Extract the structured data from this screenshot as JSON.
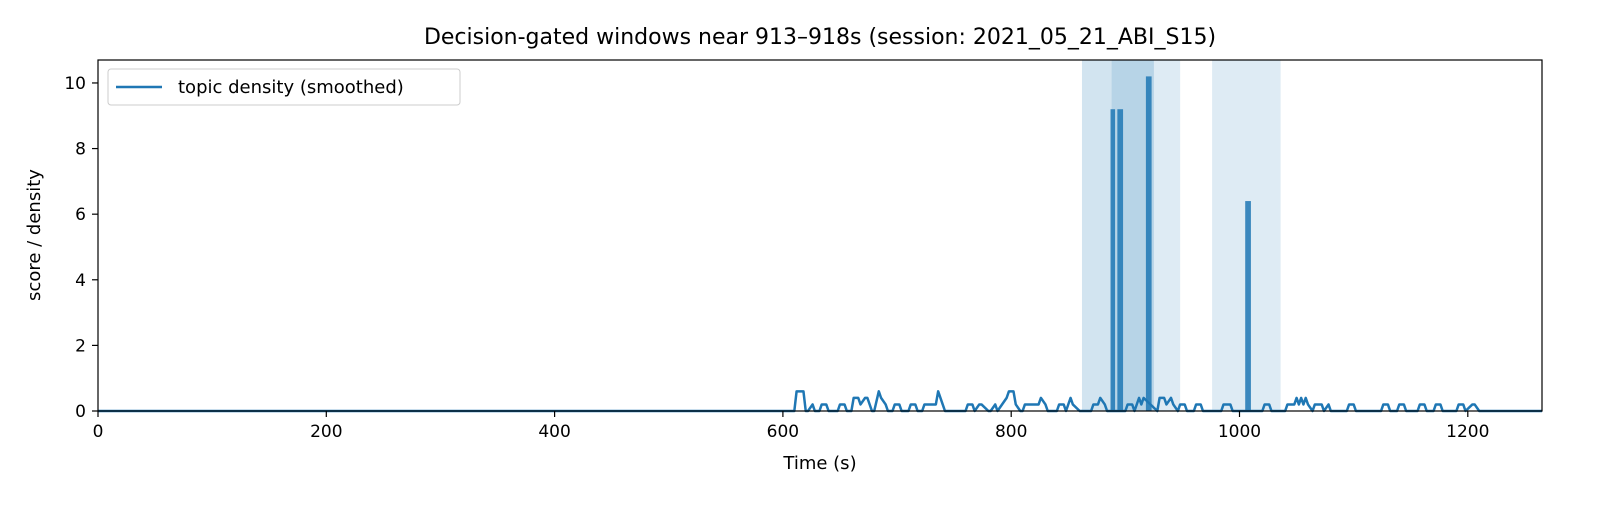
{
  "chart_data": {
    "type": "line",
    "title": "Decision-gated windows near 913–918s (session: 2021_05_21_ABI_S15)",
    "xlabel": "Time (s)",
    "ylabel": "score / density",
    "xlim": [
      0,
      1265
    ],
    "ylim": [
      0,
      10.7
    ],
    "x_ticks": [
      0,
      200,
      400,
      600,
      800,
      1000,
      1200
    ],
    "y_ticks": [
      0,
      2,
      4,
      6,
      8,
      10
    ],
    "grid": false,
    "legend": {
      "placement": "upper-left",
      "entries": [
        "topic density (smoothed)"
      ]
    },
    "colors": {
      "line": "#1f77b4",
      "bars": "#1f77b4",
      "windows": "#1f77b4"
    },
    "shaded_windows": [
      {
        "start": 862,
        "end": 925,
        "opacity": 0.2
      },
      {
        "start": 888,
        "end": 948,
        "opacity": 0.15
      },
      {
        "start": 976,
        "end": 1036,
        "opacity": 0.15
      }
    ],
    "decision_bars": [
      {
        "x": 887,
        "width": 4,
        "value": 9.2
      },
      {
        "x": 893,
        "width": 5,
        "value": 9.2
      },
      {
        "x": 918,
        "width": 5,
        "value": 10.2
      },
      {
        "x": 1005,
        "width": 5,
        "value": 6.4
      }
    ],
    "series": [
      {
        "name": "topic density (smoothed)",
        "x": [
          0,
          610,
          612,
          614,
          618,
          620,
          622,
          626,
          628,
          632,
          634,
          638,
          640,
          648,
          650,
          654,
          656,
          660,
          662,
          666,
          668,
          672,
          674,
          678,
          680,
          684,
          686,
          690,
          692,
          696,
          698,
          702,
          704,
          710,
          712,
          716,
          718,
          722,
          724,
          734,
          736,
          740,
          742,
          746,
          748,
          760,
          762,
          766,
          768,
          772,
          774,
          780,
          782,
          786,
          788,
          796,
          798,
          802,
          804,
          808,
          810,
          812,
          824,
          826,
          830,
          832,
          840,
          842,
          846,
          848,
          852,
          854,
          860,
          870,
          872,
          876,
          878,
          882,
          884,
          900,
          902,
          906,
          908,
          912,
          914,
          916,
          928,
          930,
          934,
          936,
          940,
          942,
          946,
          948,
          952,
          954,
          960,
          962,
          966,
          968,
          984,
          986,
          992,
          994,
          1000,
          1020,
          1022,
          1026,
          1028,
          1040,
          1042,
          1048,
          1050,
          1052,
          1054,
          1056,
          1058,
          1060,
          1064,
          1066,
          1072,
          1074,
          1078,
          1080,
          1094,
          1096,
          1100,
          1102,
          1110,
          1124,
          1126,
          1130,
          1132,
          1138,
          1140,
          1144,
          1146,
          1156,
          1158,
          1162,
          1164,
          1170,
          1172,
          1176,
          1178,
          1190,
          1192,
          1196,
          1198,
          1204,
          1206,
          1210,
          1212,
          1265
        ],
        "values": [
          0,
          0,
          0.6,
          0.6,
          0.6,
          0,
          0,
          0.2,
          0,
          0,
          0.2,
          0.2,
          0,
          0,
          0.2,
          0.2,
          0,
          0,
          0.4,
          0.4,
          0.2,
          0.4,
          0.4,
          0,
          0,
          0.6,
          0.4,
          0.2,
          0,
          0,
          0.2,
          0.2,
          0,
          0,
          0.2,
          0.2,
          0,
          0,
          0.2,
          0.2,
          0.6,
          0.2,
          0,
          0,
          0,
          0,
          0.2,
          0.2,
          0,
          0.2,
          0.2,
          0,
          0,
          0.2,
          0,
          0.4,
          0.6,
          0.6,
          0.2,
          0,
          0,
          0.2,
          0.2,
          0.4,
          0.2,
          0,
          0,
          0.2,
          0.2,
          0,
          0.4,
          0.2,
          0,
          0,
          0.2,
          0.2,
          0.4,
          0.2,
          0,
          0,
          0.2,
          0.2,
          0,
          0.4,
          0.2,
          0.4,
          0,
          0.4,
          0.4,
          0.2,
          0.4,
          0.2,
          0,
          0.2,
          0.2,
          0,
          0,
          0.2,
          0.2,
          0,
          0,
          0.2,
          0.2,
          0,
          0,
          0,
          0.2,
          0.2,
          0,
          0,
          0.2,
          0.2,
          0.4,
          0.2,
          0.4,
          0.2,
          0.4,
          0.2,
          0,
          0.2,
          0.2,
          0,
          0.2,
          0,
          0,
          0.2,
          0.2,
          0,
          0,
          0,
          0.2,
          0.2,
          0,
          0,
          0.2,
          0.2,
          0,
          0,
          0.2,
          0.2,
          0,
          0,
          0.2,
          0.2,
          0,
          0,
          0.2,
          0.2,
          0,
          0.2,
          0.2,
          0,
          0,
          0
        ]
      }
    ]
  }
}
